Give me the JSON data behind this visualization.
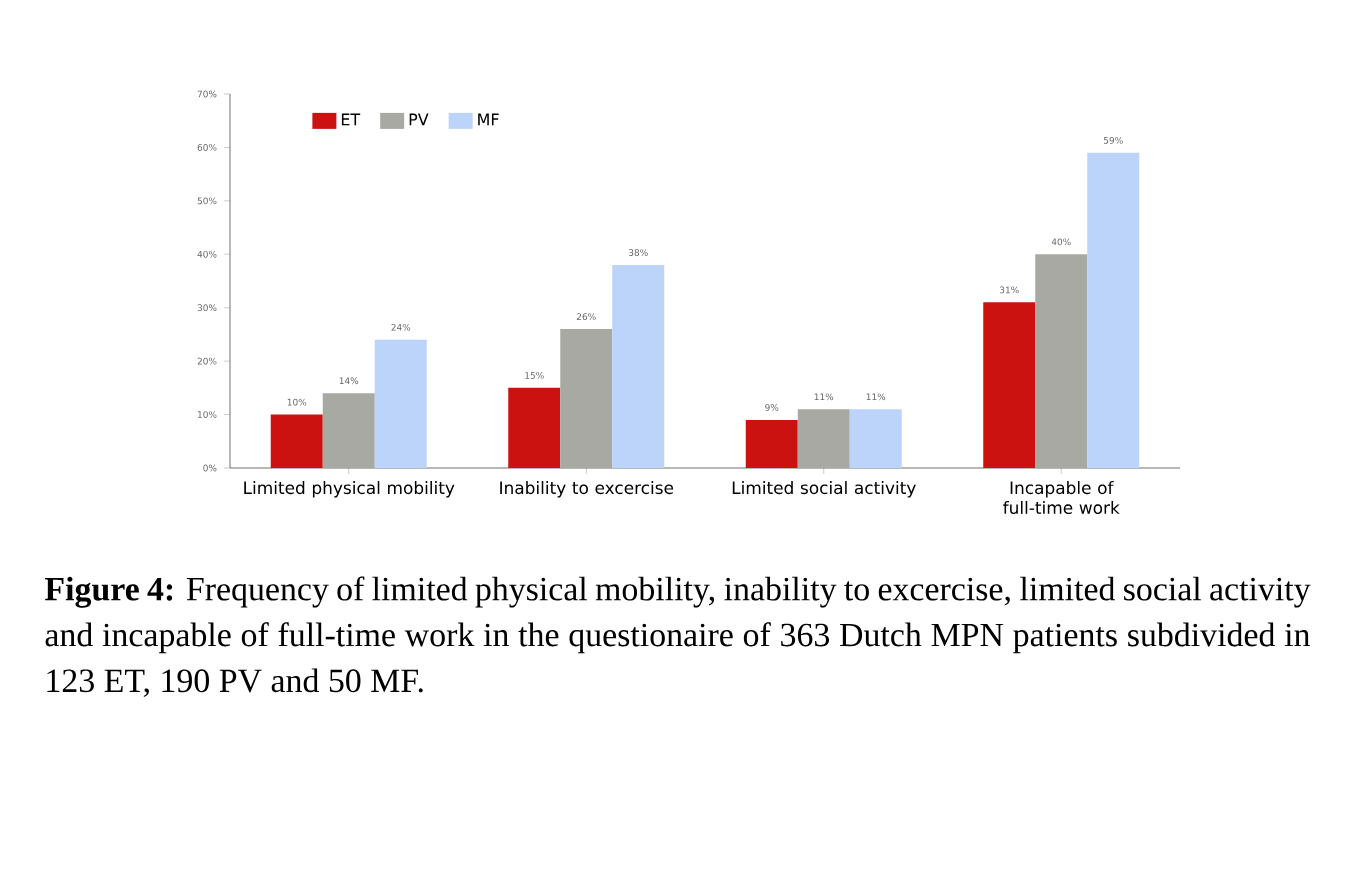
{
  "chart_data": {
    "type": "bar",
    "categories": [
      "Limited physical mobility",
      "Inability to excercise",
      "Limited social activity",
      "Incapable of full-time work"
    ],
    "series": [
      {
        "name": "ET",
        "color": "#cc1111",
        "values": [
          10,
          15,
          9,
          31
        ],
        "value_labels": [
          "10%",
          "15%",
          "9%",
          "31%"
        ]
      },
      {
        "name": "PV",
        "color": "#a9a9a4",
        "values": [
          14,
          26,
          11,
          40
        ],
        "value_labels": [
          "14%",
          "26%",
          "11%",
          "40%"
        ]
      },
      {
        "name": "MF",
        "color": "#bcd3fa",
        "values": [
          24,
          38,
          11,
          59
        ],
        "value_labels": [
          "24%",
          "38%",
          "11%",
          "59%"
        ]
      }
    ],
    "ylim": [
      0,
      70
    ],
    "yticks": [
      {
        "value": 0,
        "label": "0%"
      },
      {
        "value": 10,
        "label": "10%"
      },
      {
        "value": 20,
        "label": "20%"
      },
      {
        "value": 30,
        "label": "30%"
      },
      {
        "value": 40,
        "label": "40%"
      },
      {
        "value": 50,
        "label": "50%"
      },
      {
        "value": 60,
        "label": "60%"
      },
      {
        "value": 70,
        "label": "70%"
      }
    ],
    "legend": "top left",
    "grid": false,
    "annotations": [
      "**Figure 4:** Frequency of limited physical mobility, inability to excercise, limited social activity and incapable of full-time work in the questionaire of 363 Dutch MPN patients subdivided in 123 ET, 190 PV and 50 MF."
    ]
  }
}
